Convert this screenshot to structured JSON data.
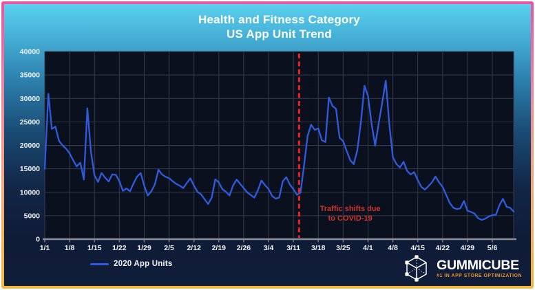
{
  "title": {
    "line1": "Health and Fitness Category",
    "line2": "US App Unit Trend"
  },
  "legend": {
    "label": "2020 App Units"
  },
  "annotation": {
    "line1": "Traffic shifts due",
    "line2": "to COVID-19"
  },
  "logo": {
    "name": "GUMMICUBE",
    "tagline": "#1 IN APP STORE OPTIMIZATION"
  },
  "colors": {
    "line_blue": "#2f5cdf",
    "covid_red": "#f42020",
    "annotation_red": "#d0342c",
    "tagline_orange": "#ee9428",
    "grid": "#353c4a",
    "plot_bg": "#0a101e",
    "axis": "#8a8f99",
    "tick_text": "#f0f3f7"
  },
  "chart_data": {
    "type": "line",
    "title": "Health and Fitness Category — US App Unit Trend",
    "xlabel": "",
    "ylabel": "",
    "ylim": [
      0,
      40000
    ],
    "y_ticks": [
      0,
      5000,
      10000,
      15000,
      20000,
      25000,
      30000,
      35000,
      40000
    ],
    "x_tick_labels": [
      "1/1",
      "1/8",
      "1/15",
      "1/22",
      "1/29",
      "2/5",
      "2/12",
      "2/19",
      "2/26",
      "3/4",
      "3/11",
      "3/18",
      "3/25",
      "4/1",
      "4/8",
      "4/15",
      "4/22",
      "4/29",
      "5/6"
    ],
    "x_tick_days": [
      1,
      8,
      15,
      22,
      29,
      36,
      43,
      50,
      57,
      64,
      71,
      78,
      85,
      92,
      99,
      106,
      113,
      120,
      127
    ],
    "days_total": 133,
    "grid": true,
    "legend_position": "bottom-left",
    "covid_vline_day": 72.6,
    "dotted_vline_day": 76.1,
    "annotation_day": 87,
    "series": [
      {
        "name": "2020 App Units",
        "values": [
          15000,
          31000,
          23500,
          24000,
          21000,
          20000,
          19300,
          18300,
          16800,
          15500,
          16300,
          12700,
          27900,
          18600,
          13600,
          12200,
          14100,
          13100,
          12300,
          13800,
          13700,
          12400,
          10300,
          10800,
          10200,
          11900,
          13350,
          14100,
          11400,
          9300,
          10200,
          11650,
          14800,
          13800,
          13300,
          13000,
          12350,
          11800,
          11400,
          10900,
          12000,
          12950,
          11400,
          10100,
          9550,
          8500,
          7500,
          8850,
          12750,
          12100,
          10650,
          10100,
          9300,
          11400,
          12700,
          11800,
          10900,
          9950,
          9400,
          8850,
          10400,
          12500,
          11500,
          10700,
          9200,
          8650,
          8850,
          12350,
          13200,
          11650,
          10650,
          9450,
          9950,
          15750,
          22050,
          24400,
          23300,
          23600,
          21100,
          20700,
          30200,
          28400,
          27800,
          21600,
          20900,
          18800,
          16800,
          16000,
          19000,
          25000,
          32700,
          30500,
          24700,
          19900,
          24700,
          29100,
          33800,
          24500,
          17450,
          16000,
          15300,
          16500,
          14550,
          13800,
          14300,
          12600,
          11150,
          10550,
          11300,
          12100,
          13350,
          12100,
          11150,
          9450,
          7750,
          6700,
          6400,
          6550,
          8150,
          6060,
          5800,
          5430,
          4450,
          4100,
          4350,
          4850,
          5100,
          5200,
          7250,
          8600,
          6900,
          6700,
          5900
        ]
      }
    ]
  }
}
